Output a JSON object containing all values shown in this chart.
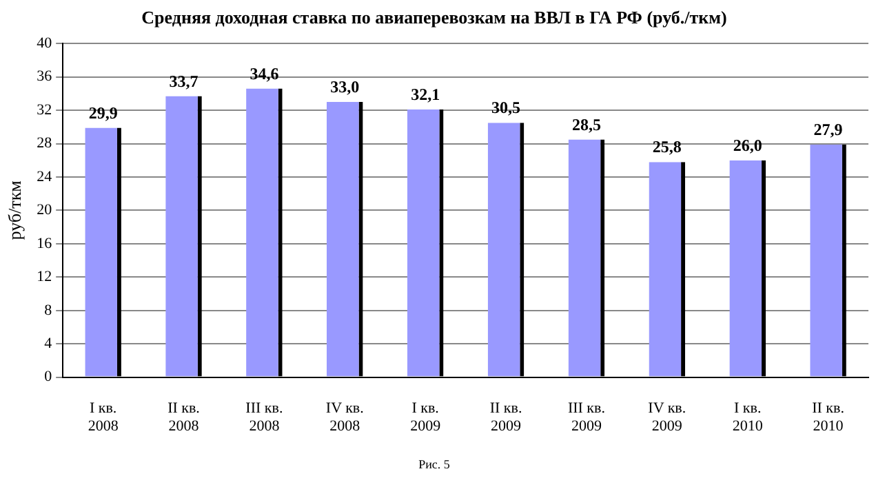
{
  "chart_data": {
    "type": "bar",
    "title": "Средняя доходная ставка по авиаперевозкам на ВВЛ в ГА РФ (руб./ткм)",
    "ylabel": "руб/ткм",
    "categories": [
      "I кв.\n2008",
      "II кв.\n2008",
      "III кв.\n2008",
      "IV кв.\n2008",
      "I кв.\n2009",
      "II кв.\n2009",
      "III кв.\n2009",
      "IV кв.\n2009",
      "I кв.\n2010",
      "II кв.\n2010"
    ],
    "values": [
      29.9,
      33.7,
      34.6,
      33.0,
      32.1,
      30.5,
      28.5,
      25.8,
      26.0,
      27.9
    ],
    "value_labels": [
      "29,9",
      "33,7",
      "34,6",
      "33,0",
      "32,1",
      "30,5",
      "28,5",
      "25,8",
      "26,0",
      "27,9"
    ],
    "color": "#9999ff",
    "ylim": [
      0,
      40
    ],
    "yticks": [
      0,
      4,
      8,
      12,
      16,
      20,
      24,
      28,
      32,
      36,
      40
    ],
    "grid": "y",
    "legend": false,
    "annotations": [
      "Рис. 5"
    ]
  }
}
